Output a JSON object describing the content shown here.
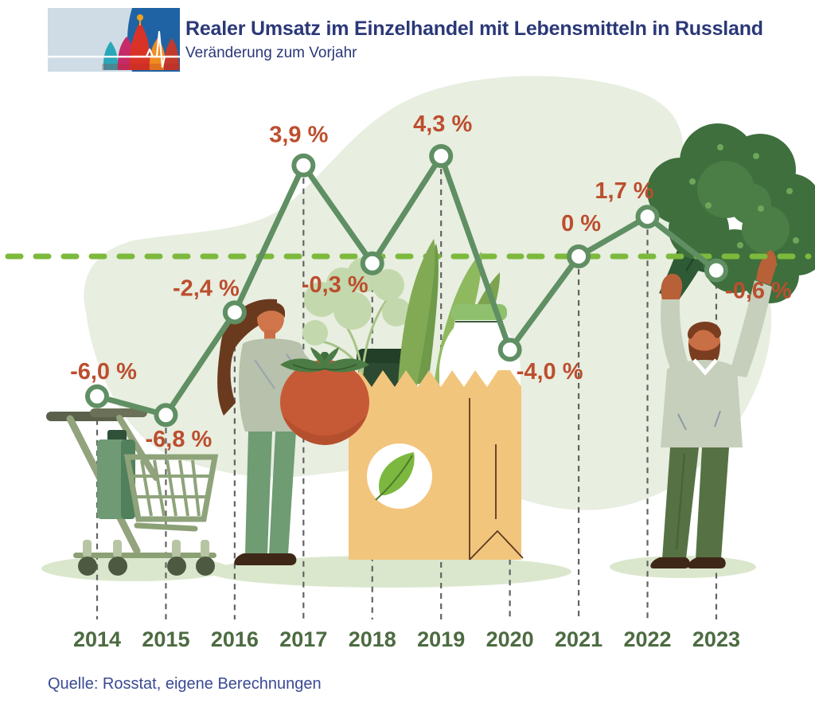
{
  "header": {
    "title": "Realer Umsatz im Einzelhandel mit Lebensmitteln in Russland",
    "subtitle": "Veränderung zum Vorjahr",
    "logo": {
      "left_icon": "st-basils-cathedral-icon",
      "right_icon": "pulse-line-icon"
    }
  },
  "chart_data": {
    "type": "line",
    "categories": [
      "2014",
      "2015",
      "2016",
      "2017",
      "2018",
      "2019",
      "2020",
      "2021",
      "2022",
      "2023"
    ],
    "values": [
      -6.0,
      -6.8,
      -2.4,
      3.9,
      -0.3,
      4.3,
      -4.0,
      0,
      1.7,
      -0.6
    ],
    "value_labels": [
      "-6,0 %",
      "-6,8 %",
      "-2,4 %",
      "3,9 %",
      "-0,3 %",
      "4,3 %",
      "-4,0 %",
      "0 %",
      "1,7 %",
      "-0,6 %"
    ],
    "title": "Realer Umsatz im Einzelhandel mit Lebensmitteln in Russland",
    "subtitle": "Veränderung zum Vorjahr",
    "unit": "%",
    "baseline_value": 0,
    "ylim": [
      -8,
      6
    ],
    "xlabel": "",
    "ylabel": "Veränderung zum Vorjahr (%)",
    "grid": false,
    "legend": false,
    "zero_line_style": "dashed"
  },
  "footer": {
    "source": "Quelle: Rosstat, eigene Berechnungen"
  },
  "colors": {
    "line": "#5f8f63",
    "marker_fill": "#ffffff",
    "zero_line": "#7db93c",
    "value_label": "#bc4e2e",
    "year_label": "#4c6b41",
    "guide_line": "#636363",
    "title_text": "#2b3878",
    "source_text": "#3a4a94",
    "background_blob": "#e8eee0",
    "ground_shadow": "#dbe7cd",
    "logo_blue": "#1f63a4"
  },
  "illustrations": [
    "shopping-cart",
    "woman-holding-tomato",
    "grocery-bag-with-vegetables",
    "man-holding-broccoli"
  ]
}
